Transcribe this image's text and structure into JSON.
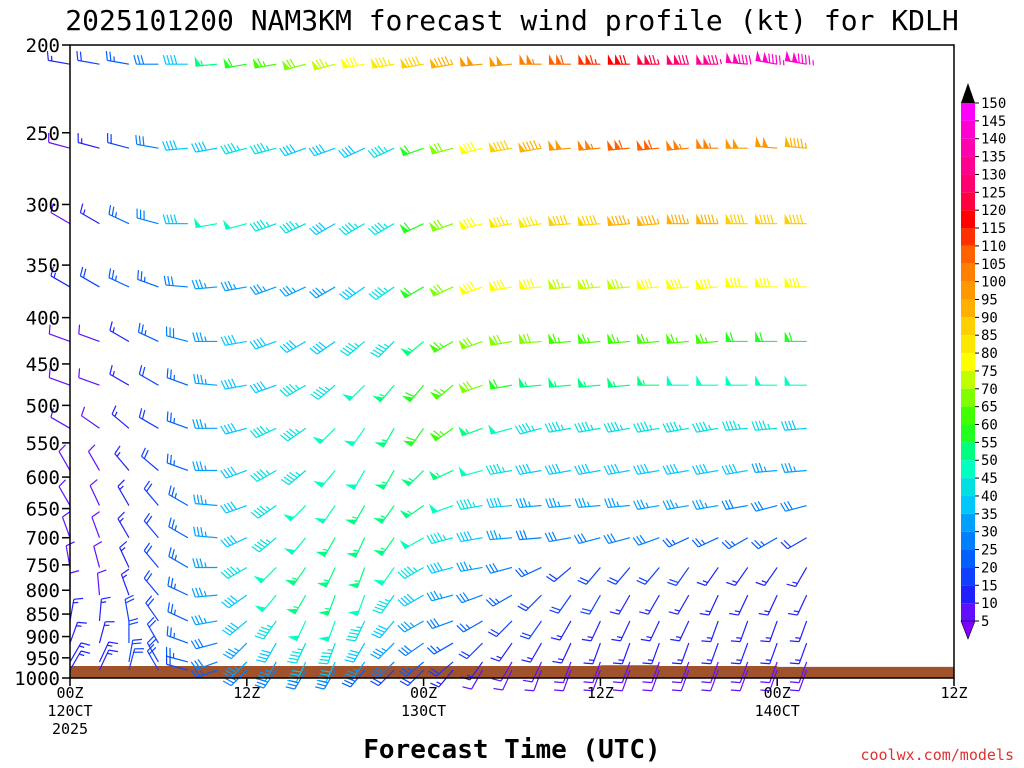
{
  "chart_data": {
    "type": "wind_barb_profile",
    "title": "2025101200 NAM3KM forecast wind profile (kt) for KDLH",
    "xlabel": "Forecast Time (UTC)",
    "credit": "coolwx.com/models",
    "x_ticks": [
      {
        "hour": 0,
        "label": "00Z",
        "sub": [
          "120CT",
          "2025"
        ]
      },
      {
        "hour": 12,
        "label": "12Z",
        "sub": []
      },
      {
        "hour": 24,
        "label": "00Z",
        "sub": [
          "130CT"
        ]
      },
      {
        "hour": 36,
        "label": "12Z",
        "sub": []
      },
      {
        "hour": 48,
        "label": "00Z",
        "sub": [
          "140CT"
        ]
      },
      {
        "hour": 60,
        "label": "12Z",
        "sub": []
      }
    ],
    "xlim": [
      0,
      60
    ],
    "ylim": [
      1000,
      200
    ],
    "y_scale": "log",
    "y_ticks": [
      200,
      250,
      300,
      350,
      400,
      450,
      500,
      550,
      600,
      650,
      700,
      750,
      800,
      850,
      900,
      950,
      1000
    ],
    "levels": [
      210,
      260,
      315,
      370,
      425,
      475,
      530,
      590,
      645,
      700,
      755,
      810,
      865,
      915,
      960,
      980
    ],
    "times": [
      0,
      2,
      4,
      6,
      8,
      10,
      12,
      14,
      16,
      18,
      20,
      22,
      24,
      26,
      28,
      30,
      32,
      34,
      36,
      38,
      40,
      42,
      44,
      46,
      48,
      50
    ],
    "surface_pressure": [
      {
        "hour": 0,
        "p": 970
      },
      {
        "hour": 24,
        "p": 970
      },
      {
        "hour": 36,
        "p": 968
      },
      {
        "hour": 40,
        "p": 970
      },
      {
        "hour": 48,
        "p": 972
      },
      {
        "hour": 60,
        "p": 974
      }
    ],
    "legend": {
      "ticks": [
        150,
        145,
        140,
        135,
        130,
        125,
        120,
        115,
        110,
        105,
        100,
        95,
        90,
        85,
        80,
        75,
        70,
        65,
        60,
        55,
        50,
        45,
        40,
        35,
        30,
        25,
        20,
        15,
        10,
        5
      ],
      "colors": {
        "5": "#8000ff",
        "10": "#6010ff",
        "15": "#2020ff",
        "20": "#1040ff",
        "25": "#0060ff",
        "30": "#0080ff",
        "35": "#00a0ff",
        "40": "#00c8ff",
        "45": "#00e0e0",
        "50": "#00ffc0",
        "55": "#00ff80",
        "60": "#20ff20",
        "65": "#40ff00",
        "70": "#80ff00",
        "75": "#c0ff00",
        "80": "#ffff00",
        "85": "#ffe800",
        "90": "#ffd000",
        "95": "#ffb000",
        "100": "#ff9800",
        "105": "#ff8000",
        "110": "#ff6000",
        "115": "#ff3000",
        "120": "#ff0000",
        "125": "#ff0040",
        "130": "#ff0070",
        "135": "#ff0090",
        "140": "#ff00b0",
        "145": "#ff00d0",
        "150": "#ff00ff"
      },
      "over_color": "#000000",
      "under_color": "#8000ff"
    },
    "ground_color": "#a0522d",
    "wind_speed_kt": [
      [
        15,
        20,
        25,
        30,
        40,
        55,
        60,
        65,
        70,
        75,
        80,
        85,
        90,
        95,
        100,
        100,
        105,
        110,
        115,
        120,
        125,
        130,
        135,
        140,
        145,
        145
      ],
      [
        10,
        15,
        20,
        30,
        40,
        40,
        45,
        45,
        40,
        40,
        40,
        45,
        60,
        70,
        80,
        90,
        95,
        100,
        105,
        110,
        110,
        105,
        105,
        100,
        100,
        95
      ],
      [
        10,
        15,
        25,
        30,
        40,
        50,
        50,
        45,
        45,
        40,
        45,
        45,
        60,
        70,
        80,
        85,
        85,
        90,
        90,
        95,
        95,
        95,
        95,
        90,
        90,
        90
      ],
      [
        15,
        20,
        25,
        25,
        30,
        35,
        35,
        35,
        35,
        35,
        40,
        45,
        60,
        70,
        80,
        80,
        80,
        75,
        75,
        75,
        80,
        80,
        80,
        80,
        80,
        80
      ],
      [
        10,
        10,
        15,
        25,
        30,
        35,
        40,
        40,
        40,
        40,
        45,
        45,
        55,
        65,
        70,
        70,
        70,
        65,
        65,
        65,
        65,
        65,
        65,
        60,
        60,
        60
      ],
      [
        10,
        10,
        15,
        20,
        25,
        35,
        40,
        40,
        45,
        45,
        50,
        55,
        60,
        65,
        70,
        60,
        55,
        55,
        55,
        55,
        55,
        50,
        50,
        50,
        50,
        50
      ],
      [
        10,
        10,
        15,
        20,
        25,
        35,
        40,
        45,
        45,
        50,
        50,
        55,
        60,
        65,
        55,
        50,
        45,
        45,
        45,
        45,
        45,
        45,
        45,
        45,
        45,
        40
      ],
      [
        10,
        10,
        15,
        20,
        25,
        35,
        40,
        45,
        45,
        50,
        50,
        55,
        55,
        55,
        50,
        45,
        40,
        40,
        40,
        40,
        40,
        40,
        40,
        40,
        35,
        35
      ],
      [
        10,
        10,
        15,
        20,
        25,
        35,
        40,
        45,
        50,
        50,
        55,
        55,
        55,
        50,
        45,
        40,
        35,
        35,
        35,
        35,
        35,
        35,
        35,
        30,
        30,
        30
      ],
      [
        10,
        10,
        15,
        20,
        25,
        35,
        40,
        45,
        50,
        55,
        55,
        55,
        50,
        45,
        40,
        35,
        30,
        30,
        30,
        30,
        30,
        25,
        25,
        25,
        25,
        20
      ],
      [
        10,
        10,
        15,
        20,
        25,
        35,
        45,
        50,
        55,
        55,
        55,
        50,
        45,
        40,
        35,
        30,
        25,
        20,
        20,
        20,
        20,
        20,
        15,
        15,
        15,
        15
      ],
      [
        10,
        10,
        15,
        20,
        25,
        35,
        40,
        50,
        55,
        55,
        50,
        45,
        40,
        35,
        30,
        25,
        20,
        20,
        20,
        15,
        15,
        15,
        15,
        15,
        15,
        15
      ],
      [
        15,
        15,
        20,
        20,
        25,
        35,
        40,
        45,
        50,
        50,
        45,
        40,
        35,
        30,
        25,
        20,
        20,
        15,
        15,
        15,
        15,
        15,
        15,
        15,
        15,
        15
      ],
      [
        15,
        15,
        20,
        20,
        25,
        30,
        35,
        40,
        45,
        45,
        40,
        35,
        30,
        25,
        20,
        15,
        15,
        15,
        15,
        15,
        15,
        15,
        15,
        15,
        15,
        15
      ],
      [
        15,
        15,
        20,
        20,
        25,
        30,
        35,
        35,
        40,
        40,
        35,
        30,
        25,
        20,
        15,
        10,
        10,
        10,
        10,
        10,
        10,
        10,
        10,
        10,
        10,
        10
      ],
      [
        15,
        15,
        20,
        20,
        20,
        25,
        30,
        30,
        30,
        30,
        25,
        20,
        20,
        15,
        10,
        10,
        10,
        10,
        10,
        10,
        10,
        10,
        10,
        10,
        10,
        10
      ]
    ],
    "wind_dir_deg": [
      [
        280,
        280,
        280,
        270,
        270,
        265,
        260,
        260,
        255,
        255,
        260,
        260,
        260,
        260,
        265,
        265,
        270,
        270,
        270,
        270,
        270,
        270,
        270,
        275,
        280,
        280
      ],
      [
        285,
        285,
        285,
        280,
        265,
        260,
        255,
        255,
        250,
        250,
        245,
        245,
        250,
        255,
        255,
        260,
        260,
        265,
        265,
        265,
        265,
        265,
        270,
        270,
        275,
        275
      ],
      [
        300,
        300,
        295,
        285,
        270,
        260,
        255,
        250,
        245,
        240,
        240,
        240,
        245,
        250,
        255,
        260,
        260,
        265,
        265,
        265,
        265,
        270,
        270,
        270,
        270,
        270
      ],
      [
        300,
        300,
        295,
        290,
        275,
        265,
        260,
        250,
        245,
        240,
        235,
        235,
        240,
        245,
        250,
        260,
        265,
        265,
        265,
        265,
        265,
        265,
        265,
        270,
        270,
        270
      ],
      [
        290,
        290,
        300,
        295,
        285,
        270,
        260,
        250,
        240,
        235,
        230,
        225,
        230,
        240,
        250,
        260,
        265,
        265,
        265,
        265,
        265,
        265,
        265,
        270,
        270,
        270
      ],
      [
        290,
        290,
        300,
        300,
        290,
        275,
        260,
        250,
        240,
        230,
        225,
        220,
        220,
        230,
        250,
        260,
        265,
        265,
        265,
        265,
        270,
        270,
        270,
        270,
        270,
        270
      ],
      [
        300,
        305,
        310,
        300,
        290,
        270,
        255,
        245,
        235,
        225,
        215,
        210,
        215,
        235,
        250,
        255,
        255,
        260,
        260,
        260,
        260,
        260,
        260,
        265,
        265,
        265
      ],
      [
        330,
        330,
        320,
        310,
        290,
        270,
        250,
        240,
        230,
        220,
        210,
        210,
        225,
        245,
        255,
        260,
        260,
        260,
        260,
        260,
        260,
        260,
        260,
        260,
        265,
        265
      ],
      [
        330,
        335,
        330,
        320,
        300,
        275,
        250,
        235,
        225,
        215,
        210,
        215,
        235,
        250,
        260,
        265,
        265,
        265,
        265,
        265,
        260,
        260,
        260,
        260,
        255,
        255
      ],
      [
        340,
        340,
        330,
        320,
        300,
        275,
        245,
        230,
        220,
        210,
        205,
        215,
        240,
        255,
        260,
        265,
        265,
        260,
        255,
        255,
        250,
        245,
        245,
        240,
        240,
        240
      ],
      [
        350,
        345,
        335,
        320,
        300,
        270,
        240,
        225,
        215,
        205,
        200,
        215,
        240,
        255,
        260,
        255,
        245,
        230,
        220,
        220,
        220,
        215,
        215,
        215,
        215,
        210
      ],
      [
        360,
        355,
        340,
        320,
        295,
        265,
        235,
        220,
        210,
        200,
        200,
        215,
        240,
        255,
        250,
        240,
        225,
        215,
        210,
        210,
        210,
        210,
        205,
        205,
        205,
        205
      ],
      [
        10,
        5,
        350,
        325,
        295,
        260,
        230,
        215,
        205,
        200,
        205,
        220,
        240,
        250,
        240,
        225,
        215,
        210,
        205,
        205,
        205,
        205,
        200,
        200,
        200,
        200
      ],
      [
        20,
        15,
        0,
        330,
        290,
        255,
        225,
        210,
        205,
        200,
        210,
        225,
        235,
        240,
        225,
        215,
        210,
        205,
        200,
        200,
        200,
        200,
        200,
        200,
        200,
        200
      ],
      [
        30,
        25,
        10,
        330,
        285,
        250,
        225,
        210,
        205,
        205,
        215,
        225,
        230,
        230,
        215,
        210,
        205,
        200,
        200,
        200,
        200,
        200,
        200,
        200,
        200,
        200
      ],
      [
        30,
        25,
        15,
        330,
        285,
        250,
        225,
        215,
        210,
        210,
        220,
        225,
        225,
        220,
        210,
        205,
        200,
        200,
        200,
        200,
        200,
        200,
        200,
        200,
        200,
        200
      ]
    ]
  }
}
